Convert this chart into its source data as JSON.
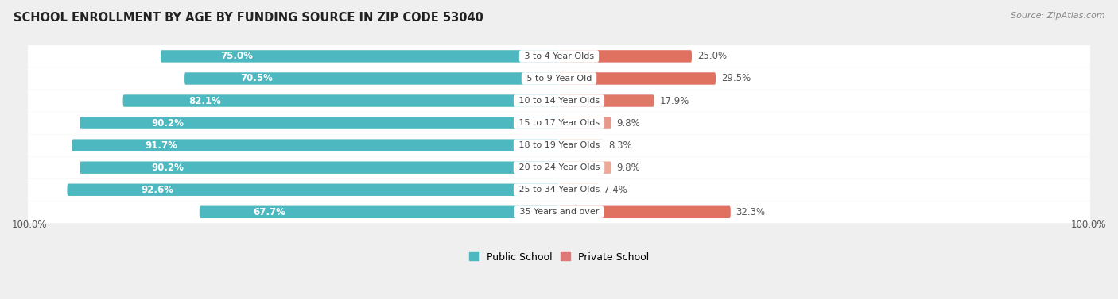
{
  "title": "SCHOOL ENROLLMENT BY AGE BY FUNDING SOURCE IN ZIP CODE 53040",
  "source": "Source: ZipAtlas.com",
  "categories": [
    "3 to 4 Year Olds",
    "5 to 9 Year Old",
    "10 to 14 Year Olds",
    "15 to 17 Year Olds",
    "18 to 19 Year Olds",
    "20 to 24 Year Olds",
    "25 to 34 Year Olds",
    "35 Years and over"
  ],
  "public_values": [
    75.0,
    70.5,
    82.1,
    90.2,
    91.7,
    90.2,
    92.6,
    67.7
  ],
  "private_values": [
    25.0,
    29.5,
    17.9,
    9.8,
    8.3,
    9.8,
    7.4,
    32.3
  ],
  "public_color": "#4DB8C0",
  "private_colors": [
    "#E07060",
    "#E07060",
    "#E07868",
    "#E89888",
    "#EDA898",
    "#EDA898",
    "#EDAAA0",
    "#E07060"
  ],
  "bg_color": "#EFEFEF",
  "row_bg_color": "#FFFFFF",
  "title_fontsize": 10.5,
  "label_fontsize": 8.5,
  "source_fontsize": 8,
  "legend_fontsize": 9,
  "axis_label_fontsize": 8.5,
  "center_label_color": "#444444",
  "bar_text_color": "#FFFFFF"
}
